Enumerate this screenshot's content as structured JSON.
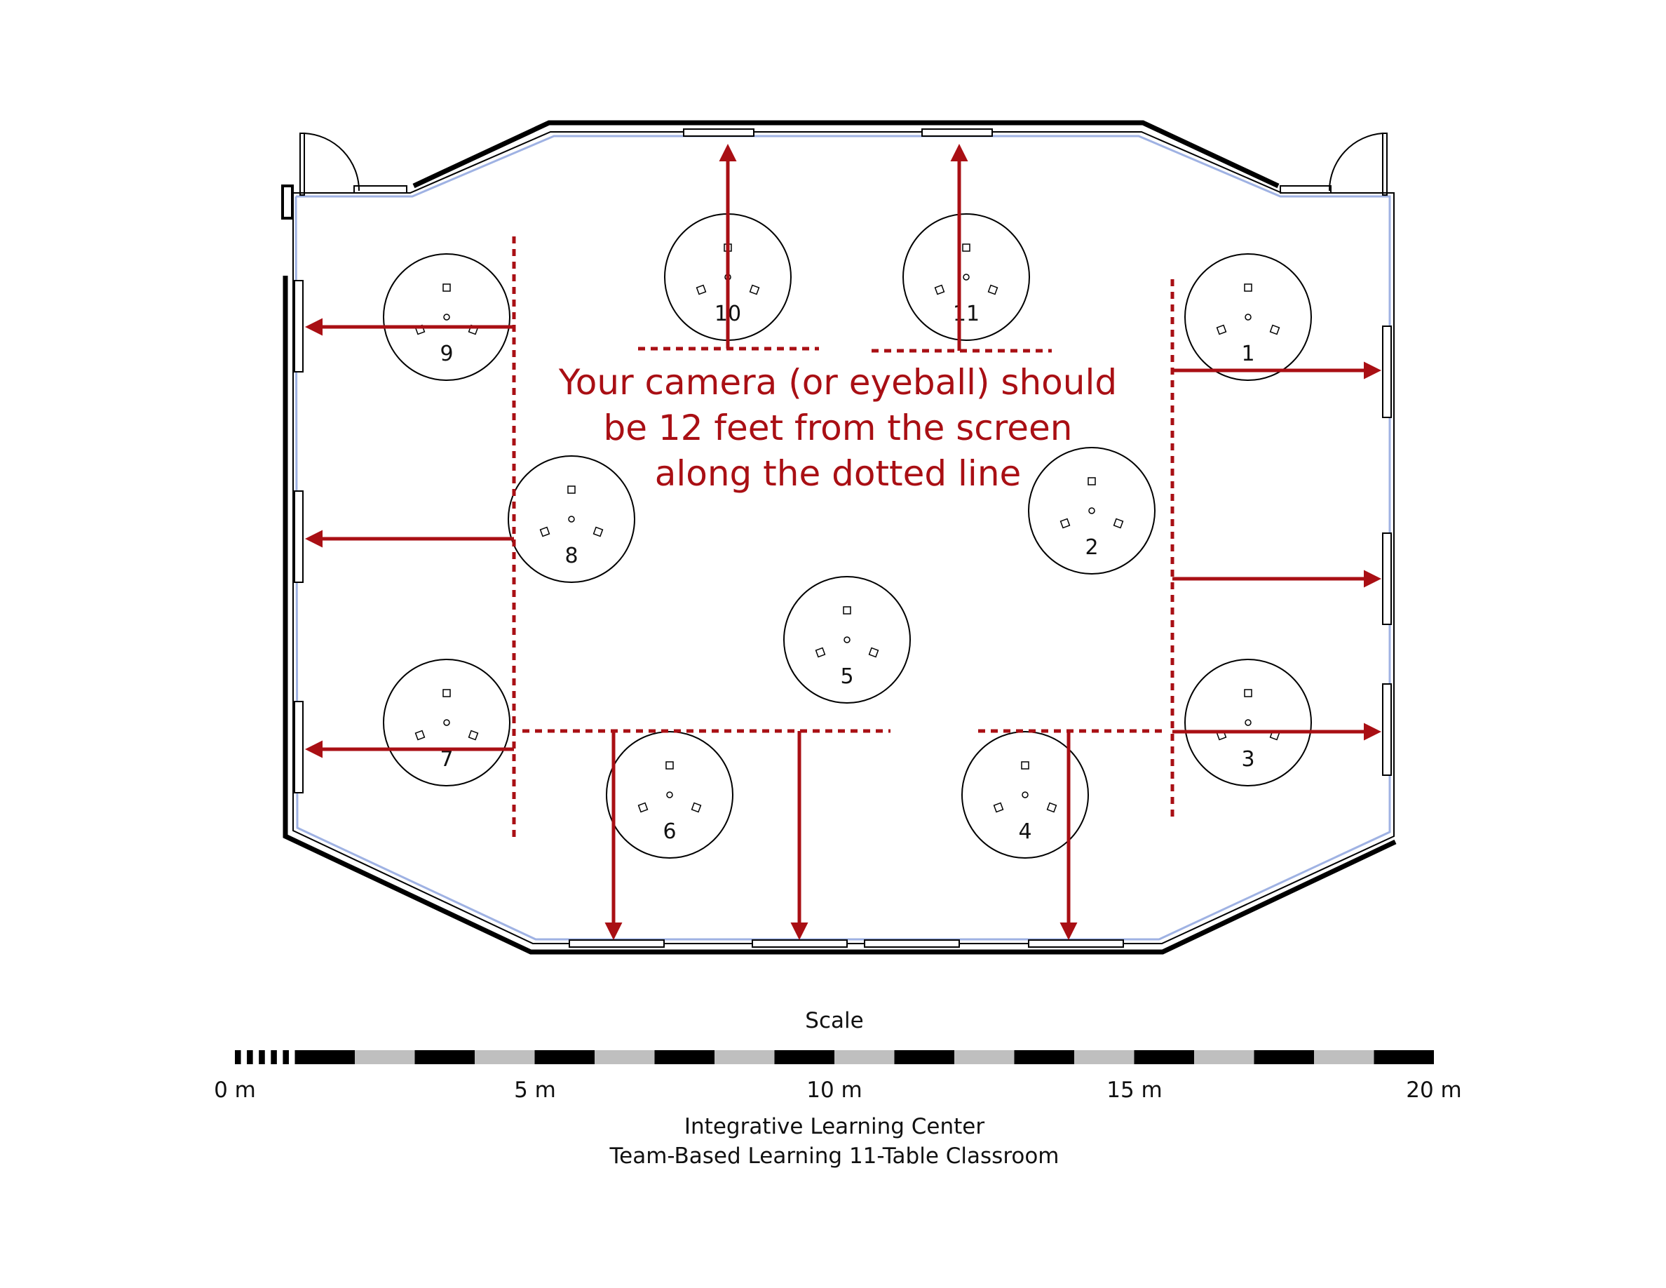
{
  "instruction_lines": [
    "Your camera (or eyeball) should",
    "be 12 feet from the screen",
    "along the dotted line"
  ],
  "tables": [
    {
      "label": "1"
    },
    {
      "label": "2"
    },
    {
      "label": "3"
    },
    {
      "label": "4"
    },
    {
      "label": "5"
    },
    {
      "label": "6"
    },
    {
      "label": "7"
    },
    {
      "label": "8"
    },
    {
      "label": "9"
    },
    {
      "label": "10"
    },
    {
      "label": "11"
    }
  ],
  "scale": {
    "title": "Scale",
    "ticks": [
      "0 m",
      "5 m",
      "10 m",
      "15 m",
      "20 m"
    ]
  },
  "caption": {
    "line1": "Integrative Learning Center",
    "line2": "Team-Based Learning 11-Table Classroom"
  },
  "colors": {
    "arrow": "#a90f14",
    "wall": "#000000",
    "window": "#9fb2e3"
  }
}
